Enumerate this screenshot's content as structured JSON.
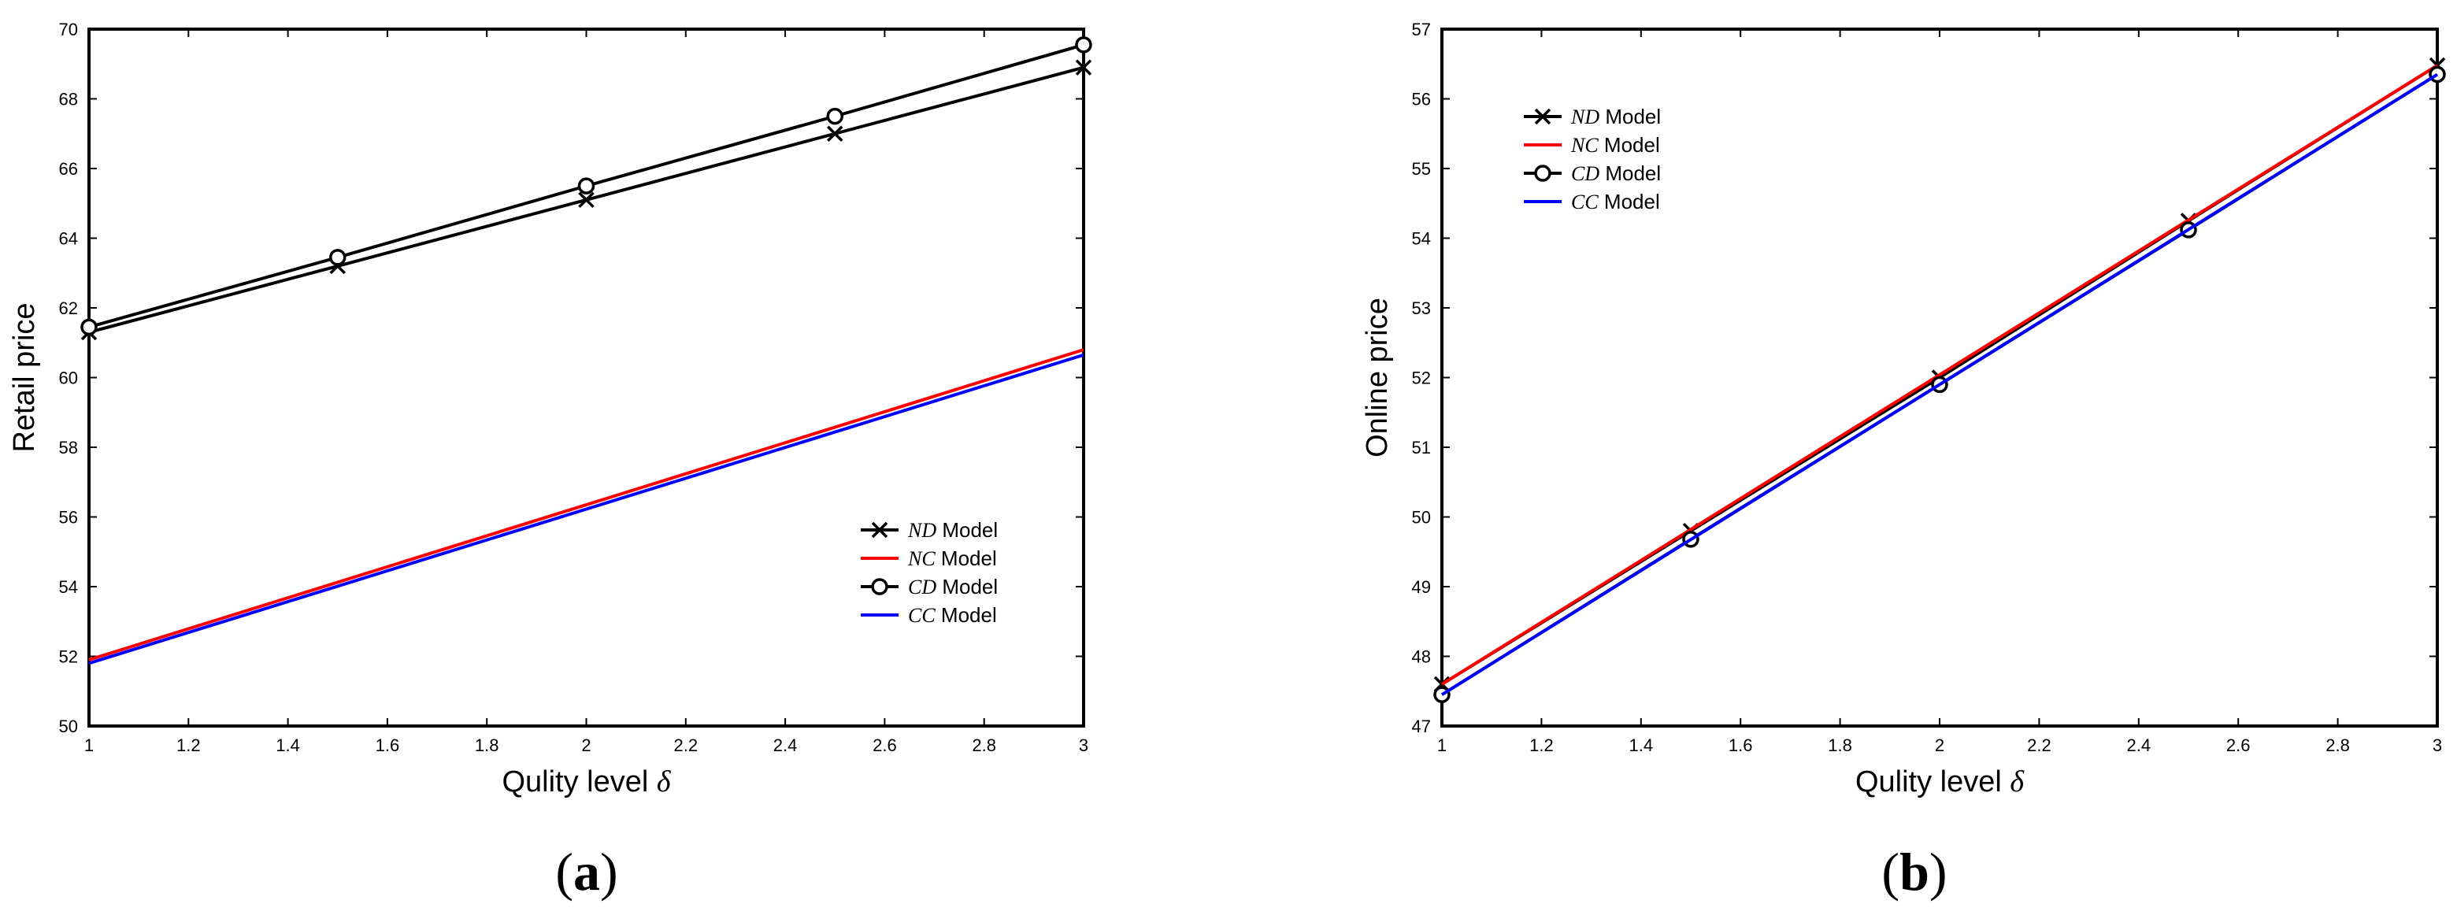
{
  "chart_data": [
    {
      "type": "line",
      "panel_label": "(a)",
      "panel_letter": "a",
      "xlabel": "Qulity level",
      "xlabel_symbol": "δ",
      "ylabel": "Retail price",
      "xlim": [
        1,
        3
      ],
      "ylim": [
        50,
        70
      ],
      "xticks": [
        1,
        1.2,
        1.4,
        1.6,
        1.8,
        2,
        2.2,
        2.4,
        2.6,
        2.8,
        3
      ],
      "xtick_labels": [
        "1",
        "1.2",
        "1.4",
        "1.6",
        "1.8",
        "2",
        "2.2",
        "2.4",
        "2.6",
        "2.8",
        "3"
      ],
      "yticks": [
        50,
        52,
        54,
        56,
        58,
        60,
        62,
        64,
        66,
        68,
        70
      ],
      "ytick_labels": [
        "50",
        "52",
        "54",
        "56",
        "58",
        "60",
        "62",
        "64",
        "66",
        "68",
        "70"
      ],
      "legend_position": "lower-right",
      "series": [
        {
          "name": "ND",
          "suffix": "Model",
          "color": "#000000",
          "marker": "x",
          "x": [
            1,
            1.5,
            2,
            2.5,
            3
          ],
          "y": [
            61.3,
            63.2,
            65.1,
            67.0,
            68.9
          ]
        },
        {
          "name": "NC",
          "suffix": "Model",
          "color": "#ff0000",
          "marker": "none",
          "x": [
            1,
            3
          ],
          "y": [
            51.9,
            60.8
          ]
        },
        {
          "name": "CD",
          "suffix": "Model",
          "color": "#000000",
          "marker": "o",
          "x": [
            1,
            1.5,
            2,
            2.5,
            3
          ],
          "y": [
            61.45,
            63.45,
            65.5,
            67.5,
            69.55
          ]
        },
        {
          "name": "CC",
          "suffix": "Model",
          "color": "#0000ff",
          "marker": "none",
          "x": [
            1,
            3
          ],
          "y": [
            51.8,
            60.65
          ]
        }
      ]
    },
    {
      "type": "line",
      "panel_label": "(b)",
      "panel_letter": "b",
      "xlabel": "Qulity level",
      "xlabel_symbol": "δ",
      "ylabel": "Online price",
      "xlim": [
        1,
        3
      ],
      "ylim": [
        47,
        57
      ],
      "xticks": [
        1,
        1.2,
        1.4,
        1.6,
        1.8,
        2,
        2.2,
        2.4,
        2.6,
        2.8,
        3
      ],
      "xtick_labels": [
        "1",
        "1.2",
        "1.4",
        "1.6",
        "1.8",
        "2",
        "2.2",
        "2.4",
        "2.6",
        "2.8",
        "3"
      ],
      "yticks": [
        47,
        48,
        49,
        50,
        51,
        52,
        53,
        54,
        55,
        56,
        57
      ],
      "ytick_labels": [
        "47",
        "48",
        "49",
        "50",
        "51",
        "52",
        "53",
        "54",
        "55",
        "56",
        "57"
      ],
      "legend_position": "top-left",
      "series": [
        {
          "name": "ND",
          "suffix": "Model",
          "color": "#000000",
          "marker": "x",
          "x": [
            1,
            1.5,
            2,
            2.5,
            3
          ],
          "y": [
            47.6,
            49.8,
            52.0,
            54.25,
            56.48
          ]
        },
        {
          "name": "NC",
          "suffix": "Model",
          "color": "#ff0000",
          "marker": "none",
          "x": [
            1,
            3
          ],
          "y": [
            47.6,
            56.48
          ]
        },
        {
          "name": "CD",
          "suffix": "Model",
          "color": "#000000",
          "marker": "o",
          "x": [
            1,
            1.5,
            2,
            2.5,
            3
          ],
          "y": [
            47.45,
            49.68,
            51.9,
            54.12,
            56.35
          ]
        },
        {
          "name": "CC",
          "suffix": "Model",
          "color": "#0000ff",
          "marker": "none",
          "x": [
            1,
            3
          ],
          "y": [
            47.45,
            56.35
          ]
        }
      ]
    }
  ]
}
